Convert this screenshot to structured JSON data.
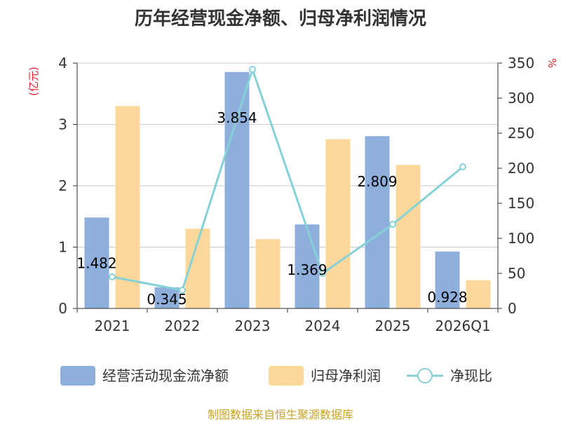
{
  "chart_data": {
    "type": "bar",
    "title": "历年经营现金净额、归母净利润情况",
    "categories": [
      "2021",
      "2022",
      "2023",
      "2024",
      "2025",
      "2026Q1"
    ],
    "series": [
      {
        "name": "经营活动现金流净额",
        "kind": "bar",
        "axis": "left",
        "color": "#8eaedb",
        "values": [
          1.482,
          0.345,
          3.854,
          1.369,
          2.809,
          0.928
        ]
      },
      {
        "name": "归母净利润",
        "kind": "bar",
        "axis": "left",
        "color": "#fdd89a",
        "values": [
          3.3,
          1.3,
          1.13,
          2.76,
          2.34,
          0.46
        ]
      },
      {
        "name": "净现比",
        "kind": "line",
        "axis": "right",
        "color": "#86d1d8",
        "values": [
          45,
          26,
          341,
          50,
          120,
          202
        ]
      }
    ],
    "bar_labels": [
      "1.482",
      "0.345",
      "3.854",
      "1.369",
      "2.809",
      "0.928"
    ],
    "left_axis": {
      "unit": "(亿元)",
      "ylim": [
        0,
        4
      ],
      "ticks": [
        0,
        1,
        2,
        3,
        4
      ]
    },
    "right_axis": {
      "unit": "%",
      "ylim": [
        0,
        350
      ],
      "ticks": [
        0,
        50,
        100,
        150,
        200,
        250,
        300,
        350
      ]
    },
    "grid": true,
    "legend_position": "bottom"
  },
  "source": "制图数据来自恒生聚源数据库"
}
